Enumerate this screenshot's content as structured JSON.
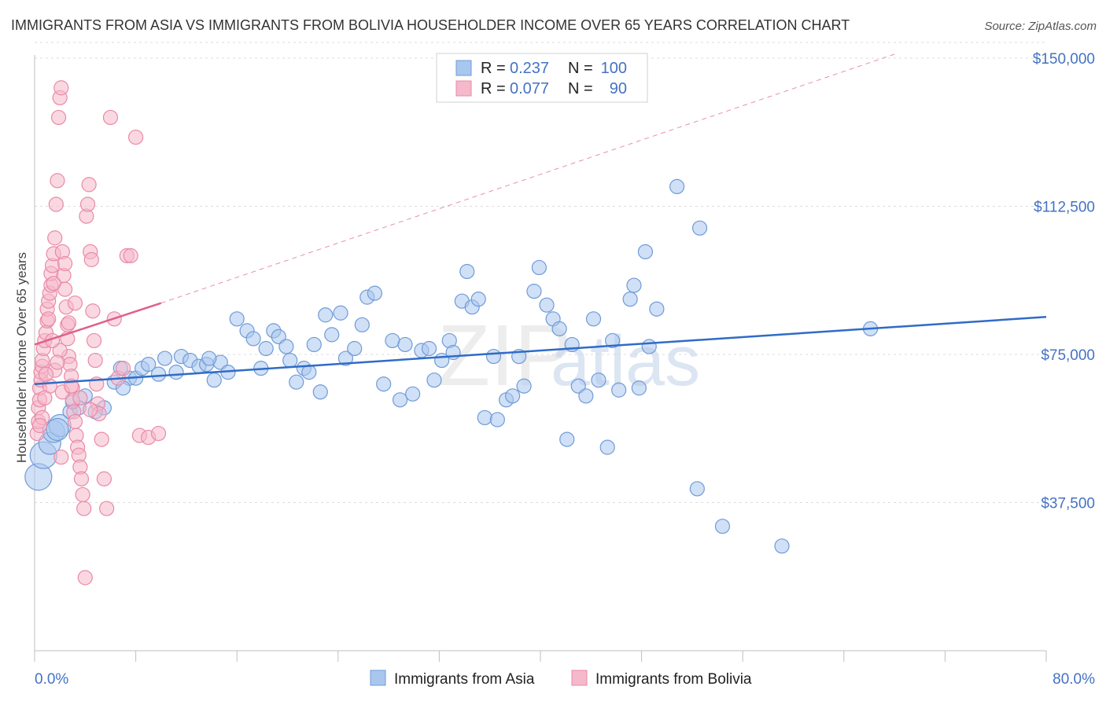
{
  "title": "IMMIGRANTS FROM ASIA VS IMMIGRANTS FROM BOLIVIA HOUSEHOLDER INCOME OVER 65 YEARS CORRELATION CHART",
  "source": "Source: ZipAtlas.com",
  "watermark": {
    "zip": "ZIP",
    "atlas": "atlas"
  },
  "legend": {
    "r_label": "R =",
    "n_label": "N =",
    "rows": [
      {
        "r": "0.237",
        "n": "100"
      },
      {
        "r": "0.077",
        "n": "90"
      }
    ]
  },
  "bottom_legend": [
    "Immigrants from Asia",
    "Immigrants from Bolivia"
  ],
  "colors": {
    "asia_fill": "#a9c7ee",
    "asia_stroke": "#6f9bd8",
    "asia_line": "#2f6cc6",
    "bolivia_fill": "#f6b8cb",
    "bolivia_stroke": "#e98aa8",
    "bolivia_line": "#e0608a",
    "grid": "#dddddd",
    "tick_text": "#4472c4"
  },
  "chart_data": {
    "type": "scatter",
    "title": "IMMIGRANTS FROM ASIA VS IMMIGRANTS FROM BOLIVIA HOUSEHOLDER INCOME OVER 65 YEARS CORRELATION CHART",
    "xlabel": "",
    "ylabel": "Householder Income Over 65 years",
    "xlim": [
      0,
      80
    ],
    "ylim": [
      0,
      152000
    ],
    "x_tick_labels": [
      "0.0%",
      "80.0%"
    ],
    "y_ticks": [
      37500,
      75000,
      112500,
      150000
    ],
    "y_tick_labels": [
      "$37,500",
      "$75,000",
      "$112,500",
      "$150,000"
    ],
    "grid": true,
    "legend_position": "top-center",
    "series": [
      {
        "name": "Immigrants from Asia",
        "r": 0.237,
        "n": 100,
        "trend": {
          "x": [
            0,
            80
          ],
          "y": [
            67500,
            84500
          ],
          "style": "solid"
        },
        "points": [
          [
            0.3,
            44000
          ],
          [
            0.7,
            49500
          ],
          [
            1.2,
            52500
          ],
          [
            1.5,
            55500
          ],
          [
            2.0,
            57000
          ],
          [
            2.8,
            60500
          ],
          [
            3.5,
            61500
          ],
          [
            4.0,
            64500
          ],
          [
            5.5,
            61500
          ],
          [
            6.3,
            68000
          ],
          [
            6.8,
            71500
          ],
          [
            7.5,
            69000
          ],
          [
            8.0,
            69000
          ],
          [
            8.5,
            71500
          ],
          [
            9.0,
            72500
          ],
          [
            9.8,
            70000
          ],
          [
            10.3,
            74000
          ],
          [
            11.2,
            70500
          ],
          [
            11.6,
            74500
          ],
          [
            12.3,
            73500
          ],
          [
            13.0,
            72000
          ],
          [
            13.6,
            72500
          ],
          [
            14.2,
            68500
          ],
          [
            14.7,
            73000
          ],
          [
            15.3,
            70500
          ],
          [
            16.0,
            84000
          ],
          [
            16.8,
            81000
          ],
          [
            17.3,
            79000
          ],
          [
            17.9,
            71500
          ],
          [
            18.3,
            76500
          ],
          [
            18.9,
            81000
          ],
          [
            19.3,
            79500
          ],
          [
            19.9,
            77000
          ],
          [
            20.2,
            73500
          ],
          [
            20.7,
            68000
          ],
          [
            21.3,
            71500
          ],
          [
            22.1,
            77500
          ],
          [
            22.6,
            65500
          ],
          [
            23.0,
            85000
          ],
          [
            23.5,
            80000
          ],
          [
            24.2,
            85500
          ],
          [
            24.6,
            74000
          ],
          [
            25.3,
            76500
          ],
          [
            25.9,
            82500
          ],
          [
            26.3,
            89500
          ],
          [
            26.9,
            90500
          ],
          [
            27.6,
            67500
          ],
          [
            28.3,
            78500
          ],
          [
            28.9,
            63500
          ],
          [
            29.3,
            77500
          ],
          [
            29.9,
            65000
          ],
          [
            30.6,
            76000
          ],
          [
            31.2,
            76500
          ],
          [
            31.6,
            68500
          ],
          [
            32.2,
            73500
          ],
          [
            32.8,
            78500
          ],
          [
            33.1,
            75500
          ],
          [
            33.8,
            88500
          ],
          [
            34.2,
            96000
          ],
          [
            34.6,
            87000
          ],
          [
            35.1,
            89000
          ],
          [
            35.6,
            59000
          ],
          [
            36.3,
            74500
          ],
          [
            36.6,
            58500
          ],
          [
            37.3,
            63500
          ],
          [
            37.8,
            64500
          ],
          [
            38.3,
            74500
          ],
          [
            38.7,
            67000
          ],
          [
            39.5,
            91000
          ],
          [
            39.9,
            97000
          ],
          [
            40.5,
            87500
          ],
          [
            41.0,
            84000
          ],
          [
            41.5,
            81500
          ],
          [
            42.1,
            53500
          ],
          [
            42.5,
            77500
          ],
          [
            43.0,
            67000
          ],
          [
            43.6,
            64500
          ],
          [
            44.2,
            84000
          ],
          [
            44.6,
            68500
          ],
          [
            45.3,
            51500
          ],
          [
            45.7,
            78500
          ],
          [
            46.2,
            66000
          ],
          [
            47.1,
            89000
          ],
          [
            47.4,
            92500
          ],
          [
            47.8,
            66500
          ],
          [
            48.3,
            101000
          ],
          [
            48.6,
            77000
          ],
          [
            49.2,
            86500
          ],
          [
            50.8,
            117500
          ],
          [
            52.6,
            107000
          ],
          [
            52.4,
            41000
          ],
          [
            54.4,
            31500
          ],
          [
            59.1,
            26500
          ],
          [
            66.1,
            81500
          ],
          [
            1.8,
            56000
          ],
          [
            4.8,
            60500
          ],
          [
            7.0,
            66500
          ],
          [
            3.0,
            63000
          ],
          [
            13.8,
            74000
          ],
          [
            21.7,
            70500
          ]
        ]
      },
      {
        "name": "Immigrants from Bolivia",
        "r": 0.077,
        "n": 90,
        "trend": {
          "x": [
            0,
            10
          ],
          "y": [
            77500,
            88000
          ],
          "style": "solid",
          "extension": {
            "x": [
              10,
              68
            ],
            "y": [
              88000,
              151000
            ],
            "style": "dashed"
          }
        },
        "points": [
          [
            0.2,
            55000
          ],
          [
            0.3,
            58000
          ],
          [
            0.3,
            61500
          ],
          [
            0.4,
            63500
          ],
          [
            0.4,
            66500
          ],
          [
            0.5,
            68500
          ],
          [
            0.5,
            70500
          ],
          [
            0.6,
            72000
          ],
          [
            0.6,
            73500
          ],
          [
            0.7,
            76500
          ],
          [
            0.8,
            78500
          ],
          [
            0.9,
            80500
          ],
          [
            1.0,
            83500
          ],
          [
            1.0,
            86500
          ],
          [
            1.1,
            88500
          ],
          [
            1.2,
            90500
          ],
          [
            1.3,
            92500
          ],
          [
            1.3,
            95500
          ],
          [
            1.4,
            97500
          ],
          [
            1.5,
            100500
          ],
          [
            1.6,
            104500
          ],
          [
            1.7,
            113000
          ],
          [
            1.8,
            119000
          ],
          [
            1.9,
            135000
          ],
          [
            2.0,
            140000
          ],
          [
            2.1,
            142500
          ],
          [
            2.2,
            101000
          ],
          [
            2.3,
            95000
          ],
          [
            2.4,
            91500
          ],
          [
            2.5,
            87000
          ],
          [
            2.6,
            82500
          ],
          [
            2.6,
            79000
          ],
          [
            2.7,
            74500
          ],
          [
            2.8,
            72500
          ],
          [
            2.9,
            69500
          ],
          [
            3.0,
            66500
          ],
          [
            3.0,
            63500
          ],
          [
            3.1,
            60500
          ],
          [
            3.2,
            58000
          ],
          [
            3.3,
            54500
          ],
          [
            3.4,
            51500
          ],
          [
            3.5,
            49500
          ],
          [
            3.6,
            46500
          ],
          [
            3.7,
            43500
          ],
          [
            3.8,
            39500
          ],
          [
            3.9,
            36000
          ],
          [
            4.0,
            18500
          ],
          [
            4.1,
            110000
          ],
          [
            4.2,
            113000
          ],
          [
            4.3,
            118000
          ],
          [
            4.4,
            101000
          ],
          [
            4.5,
            99000
          ],
          [
            4.6,
            86000
          ],
          [
            4.7,
            78500
          ],
          [
            4.8,
            73500
          ],
          [
            4.9,
            67500
          ],
          [
            5.0,
            62500
          ],
          [
            5.1,
            60000
          ],
          [
            5.3,
            53500
          ],
          [
            5.5,
            43500
          ],
          [
            5.7,
            36000
          ],
          [
            6.0,
            135000
          ],
          [
            6.3,
            84000
          ],
          [
            6.6,
            69000
          ],
          [
            7.0,
            71500
          ],
          [
            7.3,
            100000
          ],
          [
            7.6,
            100000
          ],
          [
            8.0,
            130000
          ],
          [
            8.3,
            54500
          ],
          [
            9.0,
            54000
          ],
          [
            9.8,
            55000
          ],
          [
            1.2,
            67000
          ],
          [
            1.6,
            71000
          ],
          [
            0.8,
            64000
          ],
          [
            2.0,
            76000
          ],
          [
            1.1,
            84000
          ],
          [
            2.4,
            98000
          ],
          [
            0.6,
            59000
          ],
          [
            0.9,
            70000
          ],
          [
            1.4,
            78500
          ],
          [
            1.8,
            73000
          ],
          [
            2.2,
            65500
          ],
          [
            2.7,
            83000
          ],
          [
            3.2,
            88000
          ],
          [
            0.4,
            57000
          ],
          [
            1.5,
            93000
          ],
          [
            2.9,
            67000
          ],
          [
            3.6,
            64000
          ],
          [
            4.4,
            61000
          ],
          [
            2.1,
            49000
          ]
        ]
      }
    ]
  }
}
